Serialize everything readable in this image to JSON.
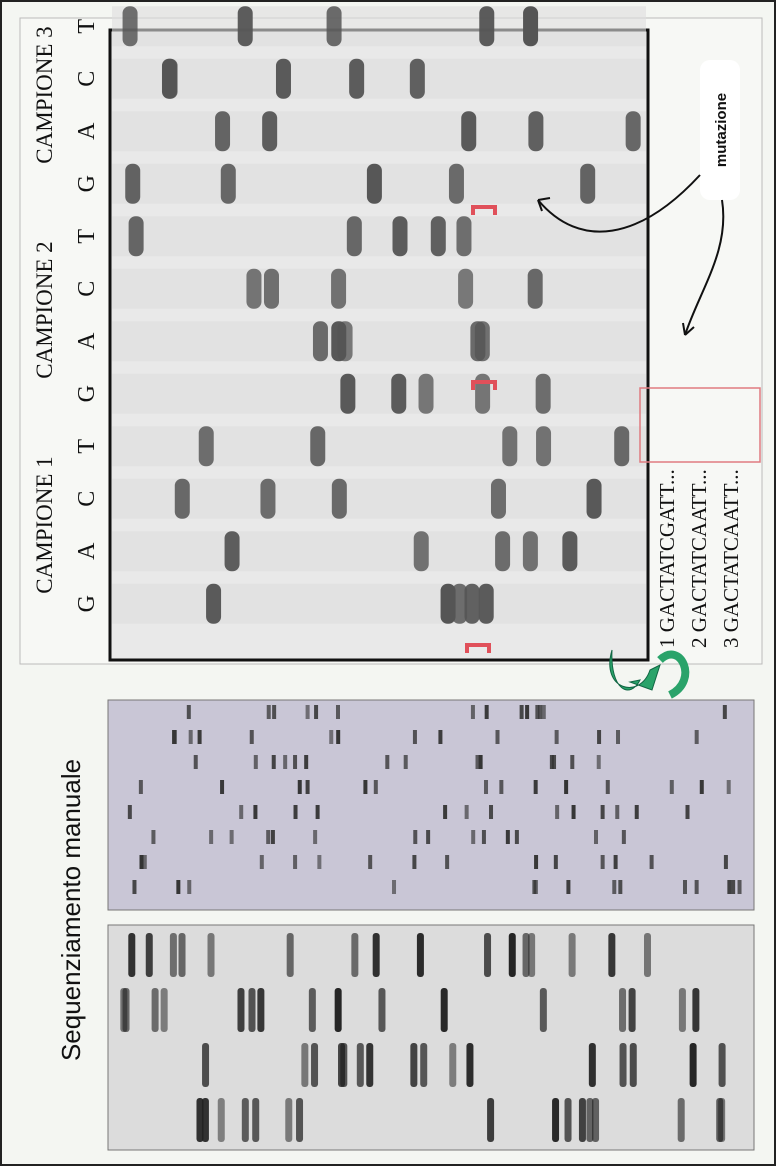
{
  "panel_top": {
    "samples": [
      "CAMPIONE 1",
      "CAMPIONE 2",
      "CAMPIONE 3"
    ],
    "lanes": [
      "G",
      "A",
      "C",
      "T"
    ],
    "annotation": "mutazione",
    "sequences": [
      "1  GACTATCGATT...",
      "2  GACTATCAATT...",
      "3  GACTATCAATT..."
    ]
  },
  "panel_bottom": {
    "title": "Sequenziamento manuale"
  }
}
